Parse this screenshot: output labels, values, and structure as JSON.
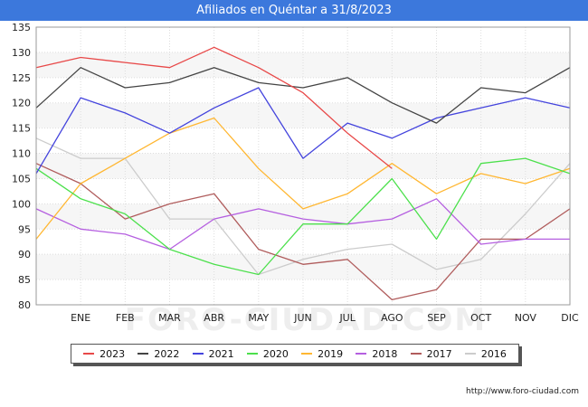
{
  "chart_data": {
    "type": "line",
    "title": "Afiliados en Quéntar a 31/8/2023",
    "categories": [
      "",
      "ENE",
      "FEB",
      "MAR",
      "ABR",
      "MAY",
      "JUN",
      "JUL",
      "AGO",
      "SEP",
      "OCT",
      "NOV",
      "DIC"
    ],
    "ylim": [
      80,
      135
    ],
    "yticks": [
      80,
      85,
      90,
      95,
      100,
      105,
      110,
      115,
      120,
      125,
      130,
      135
    ],
    "grid": true,
    "legend_position": "bottom",
    "watermark": "FORO-CIUDAD.COM",
    "source": "http://www.foro-ciudad.com",
    "series": [
      {
        "name": "2016",
        "color": "#cccccc",
        "values": [
          113,
          109,
          109,
          97,
          97,
          86,
          89,
          91,
          92,
          87,
          89,
          98,
          108
        ]
      },
      {
        "name": "2017",
        "color": "#b05c5c",
        "values": [
          108,
          104,
          97,
          100,
          102,
          91,
          88,
          89,
          81,
          83,
          93,
          93,
          99
        ]
      },
      {
        "name": "2018",
        "color": "#b55fe0",
        "values": [
          99,
          95,
          94,
          91,
          97,
          99,
          97,
          96,
          97,
          101,
          92,
          93,
          93
        ]
      },
      {
        "name": "2019",
        "color": "#ffb732",
        "values": [
          93,
          104,
          109,
          114,
          117,
          107,
          99,
          102,
          108,
          102,
          106,
          104,
          107
        ]
      },
      {
        "name": "2020",
        "color": "#4ce04c",
        "values": [
          107,
          101,
          98,
          91,
          88,
          86,
          96,
          96,
          105,
          93,
          108,
          109,
          106
        ]
      },
      {
        "name": "2021",
        "color": "#4444dd",
        "values": [
          106,
          121,
          118,
          114,
          119,
          123,
          109,
          116,
          113,
          117,
          119,
          121,
          119
        ]
      },
      {
        "name": "2022",
        "color": "#444444",
        "values": [
          119,
          127,
          123,
          124,
          127,
          124,
          123,
          125,
          120,
          116,
          123,
          122,
          127
        ]
      },
      {
        "name": "2023",
        "color": "#e84848",
        "values": [
          127,
          129,
          128,
          127,
          131,
          127,
          122,
          114,
          107,
          null,
          null,
          null,
          null
        ]
      }
    ],
    "legend_order": [
      "2023",
      "2022",
      "2021",
      "2020",
      "2019",
      "2018",
      "2017",
      "2016"
    ]
  }
}
